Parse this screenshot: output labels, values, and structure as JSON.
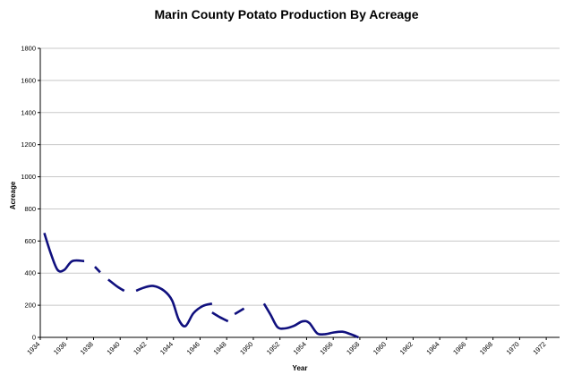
{
  "chart_data": {
    "type": "line",
    "title": "Marin County Potato Production By Acreage",
    "xlabel": "Year",
    "ylabel": "Acreage",
    "xlim": [
      1934,
      1973
    ],
    "ylim": [
      0,
      1800
    ],
    "y_ticks": [
      0,
      200,
      400,
      600,
      800,
      1000,
      1200,
      1400,
      1600,
      1800
    ],
    "x_ticks": [
      1934,
      1936,
      1938,
      1940,
      1942,
      1944,
      1946,
      1948,
      1950,
      1952,
      1954,
      1956,
      1958,
      1960,
      1962,
      1964,
      1966,
      1968,
      1970,
      1972
    ],
    "grid": "horizontal",
    "line_color": "#10107e",
    "series": [
      {
        "name": "Acreage",
        "segments": [
          [
            [
              1934.3,
              650
            ],
            [
              1934.8,
              520
            ],
            [
              1935.3,
              420
            ],
            [
              1935.8,
              420
            ],
            [
              1936.4,
              475
            ],
            [
              1937.3,
              475
            ]
          ],
          [
            [
              1938.1,
              440
            ],
            [
              1938.5,
              405
            ]
          ],
          [
            [
              1939.1,
              360
            ],
            [
              1939.8,
              315
            ],
            [
              1940.3,
              290
            ]
          ],
          [
            [
              1941.2,
              290
            ],
            [
              1941.8,
              310
            ],
            [
              1942.5,
              320
            ],
            [
              1943.3,
              290
            ],
            [
              1943.9,
              230
            ],
            [
              1944.4,
              110
            ],
            [
              1944.9,
              70
            ],
            [
              1945.5,
              150
            ],
            [
              1946.2,
              195
            ],
            [
              1946.9,
              210
            ]
          ],
          [
            [
              1946.9,
              155
            ],
            [
              1947.5,
              125
            ],
            [
              1948.1,
              100
            ]
          ],
          [
            [
              1948.6,
              145
            ],
            [
              1949.3,
              180
            ]
          ],
          [
            [
              1950.8,
              210
            ],
            [
              1951.3,
              140
            ],
            [
              1951.8,
              65
            ],
            [
              1952.3,
              55
            ],
            [
              1953.0,
              70
            ],
            [
              1953.7,
              100
            ],
            [
              1954.2,
              90
            ],
            [
              1954.8,
              25
            ],
            [
              1955.4,
              20
            ],
            [
              1956.0,
              30
            ],
            [
              1956.7,
              35
            ],
            [
              1957.3,
              20
            ],
            [
              1957.9,
              0
            ]
          ]
        ]
      }
    ]
  }
}
